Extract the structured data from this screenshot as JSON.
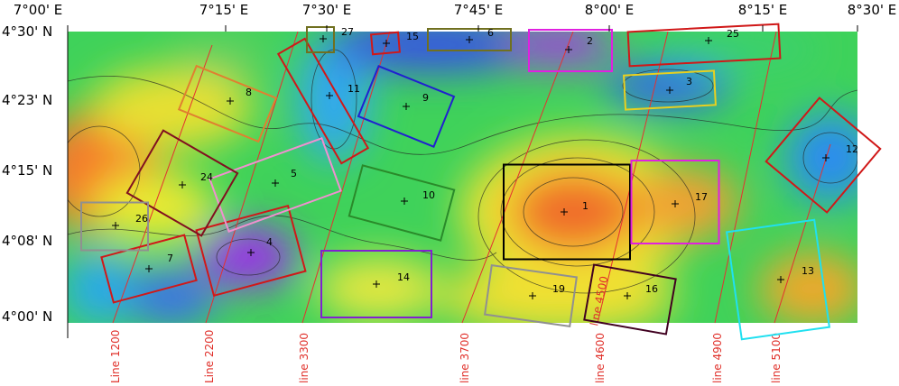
{
  "top_axis": [
    "7°00' E",
    "7°15' E",
    "7°30' E",
    "7°45' E",
    "8°00' E",
    "8°15' E",
    "8°30' E"
  ],
  "left_axis": [
    "4°30' N",
    "4°23' N",
    "4°15' N",
    "4°08' N",
    "4°00' N"
  ],
  "zones": [
    {
      "label": "1"
    },
    {
      "label": "2"
    },
    {
      "label": "3"
    },
    {
      "label": "4"
    },
    {
      "label": "5"
    },
    {
      "label": "6"
    },
    {
      "label": "7"
    },
    {
      "label": "8"
    },
    {
      "label": "9"
    },
    {
      "label": "10"
    },
    {
      "label": "11"
    },
    {
      "label": "12"
    },
    {
      "label": "13"
    },
    {
      "label": "14"
    },
    {
      "label": "15"
    },
    {
      "label": "16"
    },
    {
      "label": "17"
    },
    {
      "label": "19"
    },
    {
      "label": "24"
    },
    {
      "label": "25"
    },
    {
      "label": "26"
    },
    {
      "label": "27"
    }
  ],
  "survey_lines": [
    "Line 1200",
    "Line 2200",
    "line 3300",
    "line 3700",
    "line 4600",
    "line 4900",
    "line 5100",
    "line 4500"
  ]
}
